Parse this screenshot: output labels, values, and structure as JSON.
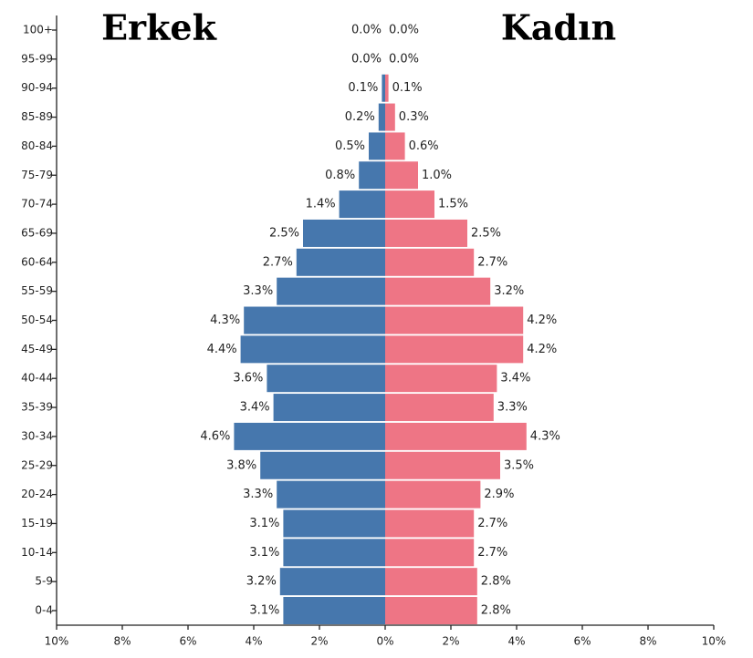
{
  "chart_data": {
    "type": "pyramid",
    "categories": [
      "100+",
      "95-99",
      "90-94",
      "85-89",
      "80-84",
      "75-79",
      "70-74",
      "65-69",
      "60-64",
      "55-59",
      "50-54",
      "45-49",
      "40-44",
      "35-39",
      "30-34",
      "25-29",
      "20-24",
      "15-19",
      "10-14",
      "5-9",
      "0-4"
    ],
    "series": [
      {
        "name": "Erkek",
        "color": "#4677ad",
        "values": [
          0.0,
          0.0,
          0.1,
          0.2,
          0.5,
          0.8,
          1.4,
          2.5,
          2.7,
          3.3,
          4.3,
          4.4,
          3.6,
          3.4,
          4.6,
          3.8,
          3.3,
          3.1,
          3.1,
          3.2,
          3.1
        ],
        "value_labels": [
          "0.0%",
          "0.0%",
          "0.1%",
          "0.2%",
          "0.5%",
          "0.8%",
          "1.4%",
          "2.5%",
          "2.7%",
          "3.3%",
          "4.3%",
          "4.4%",
          "3.6%",
          "3.4%",
          "4.6%",
          "3.8%",
          "3.3%",
          "3.1%",
          "3.1%",
          "3.2%",
          "3.1%"
        ]
      },
      {
        "name": "Kadın",
        "color": "#ee7585",
        "values": [
          0.0,
          0.0,
          0.1,
          0.3,
          0.6,
          1.0,
          1.5,
          2.5,
          2.7,
          3.2,
          4.2,
          4.2,
          3.4,
          3.3,
          4.3,
          3.5,
          2.9,
          2.7,
          2.7,
          2.8,
          2.8
        ],
        "value_labels": [
          "0.0%",
          "0.0%",
          "0.1%",
          "0.3%",
          "0.6%",
          "1.0%",
          "1.5%",
          "2.5%",
          "2.7%",
          "3.2%",
          "4.2%",
          "4.2%",
          "3.4%",
          "3.3%",
          "4.3%",
          "3.5%",
          "2.9%",
          "2.7%",
          "2.7%",
          "2.8%",
          "2.8%"
        ]
      }
    ],
    "xlim": [
      -10,
      10
    ],
    "xticks": [
      {
        "value": -10,
        "label": "10%"
      },
      {
        "value": -8,
        "label": "8%"
      },
      {
        "value": -6,
        "label": "6%"
      },
      {
        "value": -4,
        "label": "4%"
      },
      {
        "value": -2,
        "label": "2%"
      },
      {
        "value": 0,
        "label": "0%"
      },
      {
        "value": 2,
        "label": "2%"
      },
      {
        "value": 4,
        "label": "4%"
      },
      {
        "value": 6,
        "label": "6%"
      },
      {
        "value": 8,
        "label": "8%"
      },
      {
        "value": 10,
        "label": "10%"
      }
    ]
  }
}
